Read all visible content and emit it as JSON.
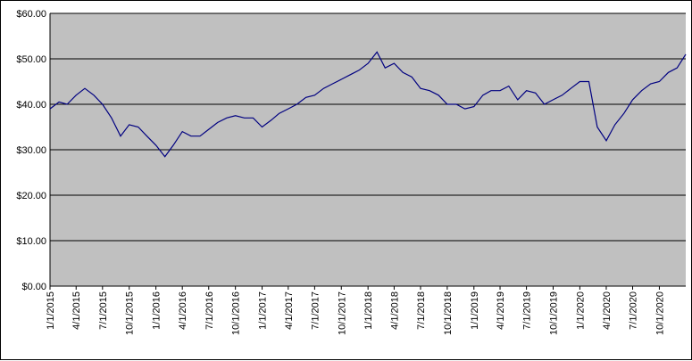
{
  "chart_data": {
    "type": "line",
    "x": [
      "1/1/2015",
      "2/1/2015",
      "3/1/2015",
      "4/1/2015",
      "5/1/2015",
      "6/1/2015",
      "7/1/2015",
      "8/1/2015",
      "9/1/2015",
      "10/1/2015",
      "11/1/2015",
      "12/1/2015",
      "1/1/2016",
      "2/1/2016",
      "3/1/2016",
      "4/1/2016",
      "5/1/2016",
      "6/1/2016",
      "7/1/2016",
      "8/1/2016",
      "9/1/2016",
      "10/1/2016",
      "11/1/2016",
      "12/1/2016",
      "1/1/2017",
      "2/1/2017",
      "3/1/2017",
      "4/1/2017",
      "5/1/2017",
      "6/1/2017",
      "7/1/2017",
      "8/1/2017",
      "9/1/2017",
      "10/1/2017",
      "11/1/2017",
      "12/1/2017",
      "1/1/2018",
      "2/1/2018",
      "3/1/2018",
      "4/1/2018",
      "5/1/2018",
      "6/1/2018",
      "7/1/2018",
      "8/1/2018",
      "9/1/2018",
      "10/1/2018",
      "11/1/2018",
      "12/1/2018",
      "1/1/2019",
      "2/1/2019",
      "3/1/2019",
      "4/1/2019",
      "5/1/2019",
      "6/1/2019",
      "7/1/2019",
      "8/1/2019",
      "9/1/2019",
      "10/1/2019",
      "11/1/2019",
      "12/1/2019",
      "1/1/2020",
      "2/1/2020",
      "3/1/2020",
      "4/1/2020",
      "5/1/2020",
      "6/1/2020",
      "7/1/2020",
      "8/1/2020",
      "9/1/2020",
      "10/1/2020",
      "11/1/2020",
      "12/1/2020",
      "12/31/2020"
    ],
    "series": [
      {
        "color": "#000080",
        "values": [
          39,
          40.5,
          40,
          42,
          43.5,
          42,
          40,
          37,
          33,
          35.5,
          35,
          33,
          31,
          28.5,
          31,
          34,
          33,
          33,
          34.5,
          36,
          37,
          37.5,
          37,
          37,
          35,
          36.5,
          38,
          39,
          40,
          41.5,
          42,
          43.5,
          44.5,
          45.5,
          46.5,
          47.5,
          49,
          51.5,
          48,
          49,
          47,
          46,
          43.5,
          43,
          42,
          40,
          40,
          39,
          39.5,
          42,
          43,
          43,
          44,
          41,
          43,
          42.5,
          40,
          41,
          42,
          43.5,
          45,
          45,
          35,
          32,
          35.5,
          38,
          41,
          43,
          44.5,
          45,
          47,
          48,
          51
        ]
      }
    ],
    "xlim": [
      "1/1/2015",
      "12/31/2020"
    ],
    "xticks": [
      "1/1/2015",
      "4/1/2015",
      "7/1/2015",
      "10/1/2015",
      "1/1/2016",
      "4/1/2016",
      "7/1/2016",
      "10/1/2016",
      "1/1/2017",
      "4/1/2017",
      "7/1/2017",
      "10/1/2017",
      "1/1/2018",
      "4/1/2018",
      "7/1/2018",
      "10/1/2018",
      "1/1/2019",
      "4/1/2019",
      "7/1/2019",
      "10/1/2019",
      "1/1/2020",
      "4/1/2020",
      "7/1/2020",
      "10/1/2020"
    ],
    "ylim": [
      0,
      60
    ],
    "yticks": [
      {
        "value": 0,
        "label": "$0.00"
      },
      {
        "value": 10,
        "label": "$10.00"
      },
      {
        "value": 20,
        "label": "$20.00"
      },
      {
        "value": 30,
        "label": "$30.00"
      },
      {
        "value": 40,
        "label": "$40.00"
      },
      {
        "value": 50,
        "label": "$50.00"
      },
      {
        "value": 60,
        "label": "$60.00"
      }
    ],
    "grid": true
  }
}
